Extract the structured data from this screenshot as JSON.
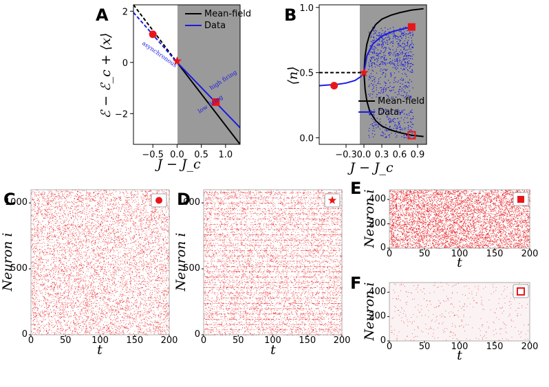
{
  "panels": {
    "A": {
      "label": "A",
      "ylabel": "ℰ − ℰ_c + ⟨x⟩",
      "xlabel": "J − J_c"
    },
    "B": {
      "label": "B",
      "ylabel": "⟨n⟩",
      "xlabel": "J − J_c"
    },
    "C": {
      "label": "C",
      "ylabel": "Neuron i",
      "xlabel": "t"
    },
    "D": {
      "label": "D",
      "ylabel": "Neuron i",
      "xlabel": "t"
    },
    "E": {
      "label": "E",
      "ylabel": "Neuron i",
      "xlabel": "t"
    },
    "F": {
      "label": "F",
      "ylabel": "Neuron i",
      "xlabel": "t"
    }
  },
  "legend": {
    "mean_field": "Mean-field",
    "data": "Data"
  },
  "annotations": {
    "asynchronous": "asynchronous",
    "high_firing": "high firing",
    "low_firing": "low firing"
  },
  "colors": {
    "shade": "#9a9a9a",
    "data": "#1a1ae0",
    "mean_field": "#000000",
    "marker": "#e8161a",
    "raster": "#e8262a"
  },
  "chart_data": [
    {
      "panel": "A",
      "type": "line",
      "xlim": [
        -0.9,
        1.3
      ],
      "ylim": [
        -3.2,
        2.25
      ],
      "xticks": [
        -0.5,
        0.0,
        0.5,
        1.0
      ],
      "xtick_labels": [
        "−0.5",
        "0.0",
        "0.5",
        "1.0"
      ],
      "yticks": [
        -2,
        0,
        2
      ],
      "ytick_labels": [
        "−2",
        "0",
        "2"
      ],
      "shaded_region": [
        0.0,
        1.3
      ],
      "series": [
        {
          "name": "Mean-field",
          "color": "#000000",
          "x": [
            0.0,
            1.3
          ],
          "y": [
            0.0,
            -3.2
          ]
        },
        {
          "name": "Mean-field",
          "color": "#000000",
          "dashed": true,
          "x": [
            -0.9,
            0.0
          ],
          "y": [
            2.25,
            0.0
          ]
        },
        {
          "name": "Data",
          "color": "#1a1ae0",
          "x": [
            0.0,
            1.3
          ],
          "y": [
            0.0,
            -2.55
          ]
        },
        {
          "name": "Data",
          "color": "#1a1ae0",
          "dashed": true,
          "x": [
            -0.9,
            0.0
          ],
          "y": [
            1.95,
            0.0
          ]
        }
      ],
      "markers": [
        {
          "shape": "circle",
          "x": -0.5,
          "y": 1.1
        },
        {
          "shape": "star",
          "x": 0.0,
          "y": 0.05
        },
        {
          "shape": "square",
          "x": 0.8,
          "y": -1.55
        }
      ]
    },
    {
      "panel": "B",
      "type": "scatter",
      "xlim": [
        -0.75,
        1.05
      ],
      "ylim": [
        -0.05,
        1.02
      ],
      "xticks": [
        -0.3,
        0.0,
        0.3,
        0.6,
        0.9
      ],
      "xtick_labels": [
        "−0.3",
        "0.0",
        "0.3",
        "0.6",
        "0.9"
      ],
      "yticks": [
        0.0,
        0.5,
        1.0
      ],
      "ytick_labels": [
        "0.0",
        "0.5",
        "1.0"
      ],
      "shaded_region": [
        0.0,
        1.05
      ],
      "series": [
        {
          "name": "Mean-field (upper)",
          "color": "#000000",
          "x": [
            0.0,
            0.02,
            0.05,
            0.1,
            0.2,
            0.3,
            0.45,
            0.6,
            0.8,
            1.0
          ],
          "y": [
            0.5,
            0.63,
            0.72,
            0.8,
            0.87,
            0.91,
            0.94,
            0.96,
            0.98,
            0.99
          ]
        },
        {
          "name": "Mean-field (lower)",
          "color": "#000000",
          "x": [
            0.0,
            0.02,
            0.05,
            0.1,
            0.2,
            0.3,
            0.45,
            0.6,
            0.8,
            1.0
          ],
          "y": [
            0.5,
            0.37,
            0.28,
            0.2,
            0.13,
            0.09,
            0.06,
            0.04,
            0.02,
            0.01
          ]
        },
        {
          "name": "Mean-field (unstable)",
          "color": "#000000",
          "dashed": true,
          "x": [
            -0.75,
            0.0
          ],
          "y": [
            0.5,
            0.5
          ]
        },
        {
          "name": "Data (asynchronous)",
          "color": "#1a1ae0",
          "x": [
            -0.75,
            -0.6,
            -0.45,
            -0.3,
            -0.15,
            -0.05,
            0.0
          ],
          "y": [
            0.4,
            0.405,
            0.41,
            0.42,
            0.44,
            0.47,
            0.5
          ]
        },
        {
          "name": "Data (high branch)",
          "color": "#1a1ae0",
          "x": [
            0.0,
            0.05,
            0.15,
            0.3,
            0.45,
            0.6,
            0.8
          ],
          "y": [
            0.5,
            0.63,
            0.72,
            0.78,
            0.81,
            0.83,
            0.85
          ]
        }
      ],
      "markers": [
        {
          "shape": "circle",
          "filled": true,
          "x": -0.5,
          "y": 0.4
        },
        {
          "shape": "star",
          "filled": true,
          "x": 0.0,
          "y": 0.5
        },
        {
          "shape": "square",
          "filled": true,
          "x": 0.8,
          "y": 0.85
        },
        {
          "shape": "square",
          "filled": false,
          "x": 0.8,
          "y": 0.02
        }
      ],
      "legend_position": "lower-right"
    },
    {
      "panel": "C",
      "type": "scatter",
      "xlim": [
        0,
        200
      ],
      "ylim": [
        0,
        1100
      ],
      "xticks": [
        0,
        50,
        100,
        150,
        200
      ],
      "yticks": [
        0,
        500,
        1000
      ],
      "density": 0.26,
      "marker": "circle"
    },
    {
      "panel": "D",
      "type": "scatter",
      "xlim": [
        0,
        200
      ],
      "ylim": [
        0,
        1100
      ],
      "xticks": [
        0,
        50,
        100,
        150,
        200
      ],
      "yticks": [
        0,
        500,
        1000
      ],
      "density": 0.26,
      "marker": "star"
    },
    {
      "panel": "E",
      "type": "scatter",
      "xlim": [
        0,
        200
      ],
      "ylim": [
        0,
        480
      ],
      "xticks": [
        0,
        50,
        100,
        150,
        200
      ],
      "yticks": [
        0,
        200,
        400
      ],
      "density": 0.8,
      "marker": "square"
    },
    {
      "panel": "F",
      "type": "scatter",
      "xlim": [
        0,
        200
      ],
      "ylim": [
        0,
        480
      ],
      "xticks": [
        0,
        50,
        100,
        150,
        200
      ],
      "yticks": [
        0,
        200,
        400
      ],
      "density": 0.03,
      "marker": "square-open"
    }
  ]
}
